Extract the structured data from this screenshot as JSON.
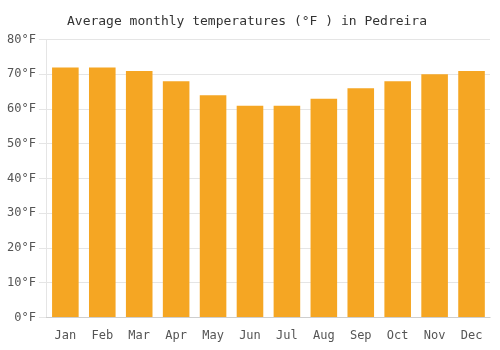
{
  "chart_data": {
    "type": "bar",
    "title": "Average monthly temperatures (°F ) in Pedreira",
    "categories": [
      "Jan",
      "Feb",
      "Mar",
      "Apr",
      "May",
      "Jun",
      "Jul",
      "Aug",
      "Sep",
      "Oct",
      "Nov",
      "Dec"
    ],
    "values": [
      72,
      72,
      71,
      68,
      64,
      61,
      61,
      63,
      66,
      68,
      70,
      71
    ],
    "color": "#F5A623",
    "ylim": [
      0,
      80
    ],
    "yticks": [
      {
        "value": 0,
        "label": "0°F"
      },
      {
        "value": 10,
        "label": "10°F"
      },
      {
        "value": 20,
        "label": "20°F"
      },
      {
        "value": 30,
        "label": "30°F"
      },
      {
        "value": 40,
        "label": "40°F"
      },
      {
        "value": 50,
        "label": "50°F"
      },
      {
        "value": 60,
        "label": "60°F"
      },
      {
        "value": 70,
        "label": "70°F"
      },
      {
        "value": 80,
        "label": "80°F"
      }
    ],
    "grid": true
  }
}
